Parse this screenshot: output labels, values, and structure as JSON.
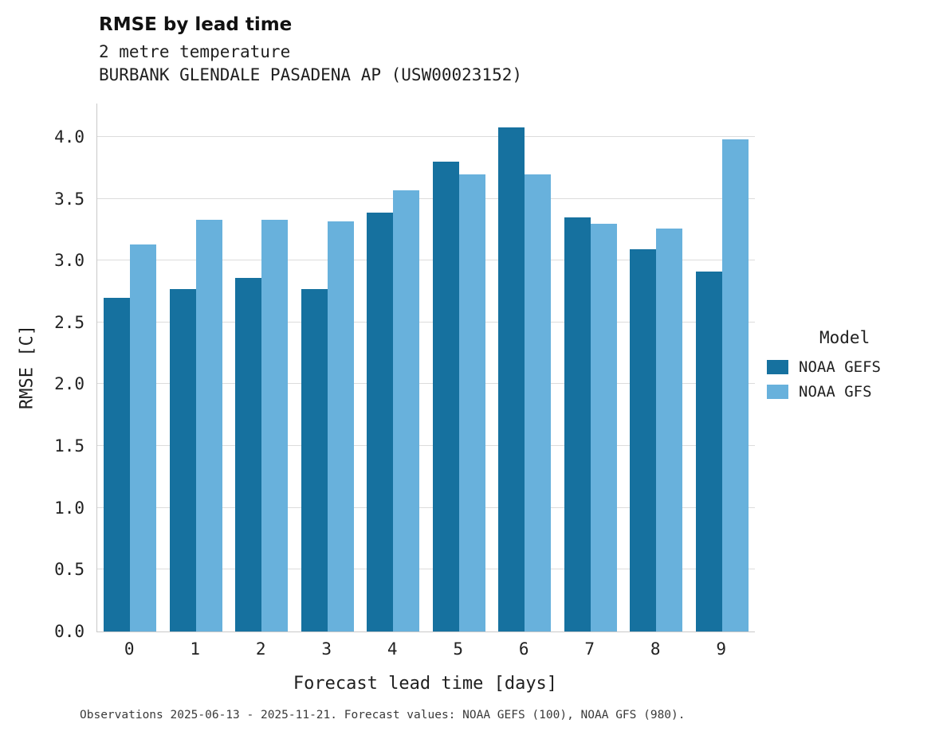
{
  "title": "RMSE by lead time",
  "subtitle_variable": "2 metre temperature",
  "subtitle_station": "BURBANK GLENDALE PASADENA AP (USW00023152)",
  "footer": "Observations 2025-06-13 - 2025-11-21. Forecast values: NOAA GEFS (100), NOAA GFS (980).",
  "legend": {
    "title": "Model",
    "entries": [
      {
        "label": "NOAA GEFS",
        "color": "#16719f"
      },
      {
        "label": "NOAA GFS",
        "color": "#68b1dc"
      }
    ]
  },
  "chart_data": {
    "type": "bar",
    "title": "RMSE by lead time",
    "subtitle": [
      "2 metre temperature",
      "BURBANK GLENDALE PASADENA AP (USW00023152)"
    ],
    "xlabel": "Forecast lead time [days]",
    "ylabel": "RMSE [C]",
    "categories": [
      0,
      1,
      2,
      3,
      4,
      5,
      6,
      7,
      8,
      9
    ],
    "series": [
      {
        "name": "NOAA GEFS",
        "color": "#16719f",
        "values": [
          2.7,
          2.77,
          2.86,
          2.77,
          3.39,
          3.8,
          4.08,
          3.35,
          3.09,
          2.91
        ]
      },
      {
        "name": "NOAA GFS",
        "color": "#68b1dc",
        "values": [
          3.13,
          3.33,
          3.33,
          3.32,
          3.57,
          3.7,
          3.7,
          3.3,
          3.26,
          3.98
        ]
      }
    ],
    "ylim": [
      0,
      4.27
    ],
    "yticks": [
      0.0,
      0.5,
      1.0,
      1.5,
      2.0,
      2.5,
      3.0,
      3.5,
      4.0
    ],
    "grid": true,
    "legend_position": "right"
  }
}
